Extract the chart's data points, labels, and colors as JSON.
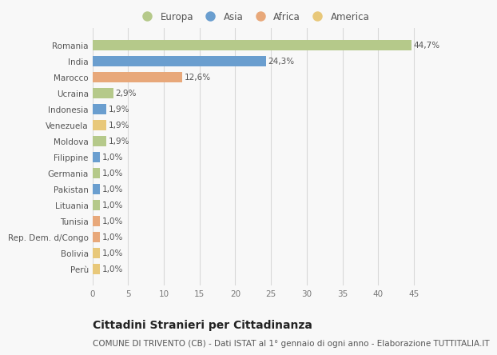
{
  "categories": [
    "Perù",
    "Bolivia",
    "Rep. Dem. d/Congo",
    "Tunisia",
    "Lituania",
    "Pakistan",
    "Germania",
    "Filippine",
    "Moldova",
    "Venezuela",
    "Indonesia",
    "Ucraina",
    "Marocco",
    "India",
    "Romania"
  ],
  "values": [
    1.0,
    1.0,
    1.0,
    1.0,
    1.0,
    1.0,
    1.0,
    1.0,
    1.9,
    1.9,
    1.9,
    2.9,
    12.6,
    24.3,
    44.7
  ],
  "labels": [
    "1,0%",
    "1,0%",
    "1,0%",
    "1,0%",
    "1,0%",
    "1,0%",
    "1,0%",
    "1,0%",
    "1,9%",
    "1,9%",
    "1,9%",
    "2,9%",
    "12,6%",
    "24,3%",
    "44,7%"
  ],
  "colors": [
    "#e8c87a",
    "#e8c87a",
    "#e8a87a",
    "#e8a87a",
    "#b5c98a",
    "#6a9ecf",
    "#b5c98a",
    "#6a9ecf",
    "#b5c98a",
    "#e8c87a",
    "#6a9ecf",
    "#b5c98a",
    "#e8a87a",
    "#6a9ecf",
    "#b5c98a"
  ],
  "legend_labels": [
    "Europa",
    "Asia",
    "Africa",
    "America"
  ],
  "legend_colors": [
    "#b5c98a",
    "#6a9ecf",
    "#e8a87a",
    "#e8c87a"
  ],
  "title": "Cittadini Stranieri per Cittadinanza",
  "subtitle": "COMUNE DI TRIVENTO (CB) - Dati ISTAT al 1° gennaio di ogni anno - Elaborazione TUTTITALIA.IT",
  "xlim": [
    0,
    47
  ],
  "xticks": [
    0,
    5,
    10,
    15,
    20,
    25,
    30,
    35,
    40,
    45
  ],
  "background_color": "#f8f8f8",
  "grid_color": "#d8d8d8",
  "bar_height": 0.65,
  "title_fontsize": 10,
  "subtitle_fontsize": 7.5,
  "label_fontsize": 7.5,
  "tick_fontsize": 7.5,
  "legend_fontsize": 8.5
}
